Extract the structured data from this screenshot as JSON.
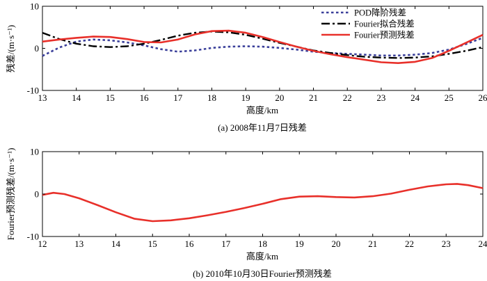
{
  "chart_data": [
    {
      "type": "line",
      "caption": "(a) 2008年11月7日残差",
      "xlabel": "高度/km",
      "ylabel": "残差/(m·s⁻¹)",
      "xlim": [
        13,
        26
      ],
      "ylim": [
        -10,
        10
      ],
      "x_ticks": [
        13,
        14,
        15,
        16,
        17,
        18,
        19,
        20,
        21,
        22,
        23,
        24,
        25,
        26
      ],
      "y_ticks": [
        -10,
        0,
        10
      ],
      "grid": false,
      "legend_position": "top-right",
      "series": [
        {
          "name": "POD降阶残差",
          "style": "dotted",
          "color": "#3a3f9a",
          "points": [
            [
              13,
              -1.8
            ],
            [
              13.5,
              0.2
            ],
            [
              14,
              1.6
            ],
            [
              14.5,
              2.1
            ],
            [
              15,
              1.9
            ],
            [
              15.5,
              1.4
            ],
            [
              16,
              0.7
            ],
            [
              16.5,
              -0.2
            ],
            [
              17,
              -0.8
            ],
            [
              17.5,
              -0.5
            ],
            [
              18,
              0.1
            ],
            [
              18.5,
              0.4
            ],
            [
              19,
              0.5
            ],
            [
              19.5,
              0.4
            ],
            [
              20,
              0.1
            ],
            [
              20.5,
              -0.3
            ],
            [
              21,
              -0.8
            ],
            [
              21.5,
              -1.1
            ],
            [
              22,
              -1.3
            ],
            [
              22.5,
              -1.5
            ],
            [
              23,
              -1.7
            ],
            [
              23.5,
              -1.7
            ],
            [
              24,
              -1.5
            ],
            [
              24.5,
              -1.1
            ],
            [
              25,
              -0.3
            ],
            [
              25.5,
              1.0
            ],
            [
              26,
              2.5
            ]
          ]
        },
        {
          "name": "Fourier拟合残差",
          "style": "dashdot",
          "color": "#000000",
          "points": [
            [
              13,
              3.7
            ],
            [
              13.5,
              2.2
            ],
            [
              14,
              1.1
            ],
            [
              14.5,
              0.5
            ],
            [
              15,
              0.3
            ],
            [
              15.5,
              0.5
            ],
            [
              16,
              1.1
            ],
            [
              16.5,
              2.0
            ],
            [
              17,
              3.0
            ],
            [
              17.5,
              3.7
            ],
            [
              18,
              4.0
            ],
            [
              18.5,
              3.8
            ],
            [
              19,
              3.2
            ],
            [
              19.5,
              2.3
            ],
            [
              20,
              1.3
            ],
            [
              20.5,
              0.4
            ],
            [
              21,
              -0.5
            ],
            [
              21.5,
              -1.1
            ],
            [
              22,
              -1.6
            ],
            [
              22.5,
              -2.0
            ],
            [
              23,
              -2.2
            ],
            [
              23.5,
              -2.3
            ],
            [
              24,
              -2.2
            ],
            [
              24.5,
              -1.9
            ],
            [
              25,
              -1.3
            ],
            [
              25.5,
              -0.6
            ],
            [
              26,
              0.3
            ]
          ]
        },
        {
          "name": "Fourier预测残差",
          "style": "solid",
          "color": "#e8302a",
          "points": [
            [
              13,
              1.6
            ],
            [
              13.5,
              2.1
            ],
            [
              14,
              2.5
            ],
            [
              14.5,
              2.8
            ],
            [
              15,
              2.7
            ],
            [
              15.5,
              2.2
            ],
            [
              16,
              1.5
            ],
            [
              16.5,
              1.4
            ],
            [
              17,
              2.1
            ],
            [
              17.5,
              3.3
            ],
            [
              18,
              4.1
            ],
            [
              18.5,
              4.2
            ],
            [
              19,
              3.7
            ],
            [
              19.5,
              2.7
            ],
            [
              20,
              1.5
            ],
            [
              20.5,
              0.4
            ],
            [
              21,
              -0.6
            ],
            [
              21.5,
              -1.4
            ],
            [
              22,
              -2.1
            ],
            [
              22.5,
              -2.7
            ],
            [
              23,
              -3.3
            ],
            [
              23.5,
              -3.5
            ],
            [
              24,
              -3.2
            ],
            [
              24.5,
              -2.3
            ],
            [
              25,
              -0.6
            ],
            [
              25.5,
              1.3
            ],
            [
              26,
              3.2
            ]
          ]
        }
      ]
    },
    {
      "type": "line",
      "caption": "(b) 2010年10月30日Fourier预测残差",
      "xlabel": "高度/km",
      "ylabel": "Fourier预测残差/(m·s⁻¹)",
      "xlim": [
        12,
        24
      ],
      "ylim": [
        -10,
        10
      ],
      "x_ticks": [
        12,
        13,
        14,
        15,
        16,
        17,
        18,
        19,
        20,
        21,
        22,
        23,
        24
      ],
      "y_ticks": [
        -10,
        0,
        10
      ],
      "grid": false,
      "series": [
        {
          "style": "solid",
          "color": "#e8302a",
          "points": [
            [
              12,
              -0.2
            ],
            [
              12.3,
              0.3
            ],
            [
              12.6,
              0.0
            ],
            [
              13,
              -1.0
            ],
            [
              13.5,
              -2.6
            ],
            [
              14,
              -4.3
            ],
            [
              14.5,
              -5.8
            ],
            [
              15,
              -6.4
            ],
            [
              15.5,
              -6.2
            ],
            [
              16,
              -5.7
            ],
            [
              16.5,
              -5.0
            ],
            [
              17,
              -4.2
            ],
            [
              17.5,
              -3.3
            ],
            [
              18,
              -2.3
            ],
            [
              18.5,
              -1.2
            ],
            [
              19,
              -0.6
            ],
            [
              19.5,
              -0.5
            ],
            [
              20,
              -0.7
            ],
            [
              20.5,
              -0.8
            ],
            [
              21,
              -0.5
            ],
            [
              21.5,
              0.1
            ],
            [
              22,
              1.0
            ],
            [
              22.5,
              1.8
            ],
            [
              23,
              2.3
            ],
            [
              23.3,
              2.4
            ],
            [
              23.6,
              2.1
            ],
            [
              24,
              1.4
            ]
          ]
        }
      ]
    }
  ]
}
